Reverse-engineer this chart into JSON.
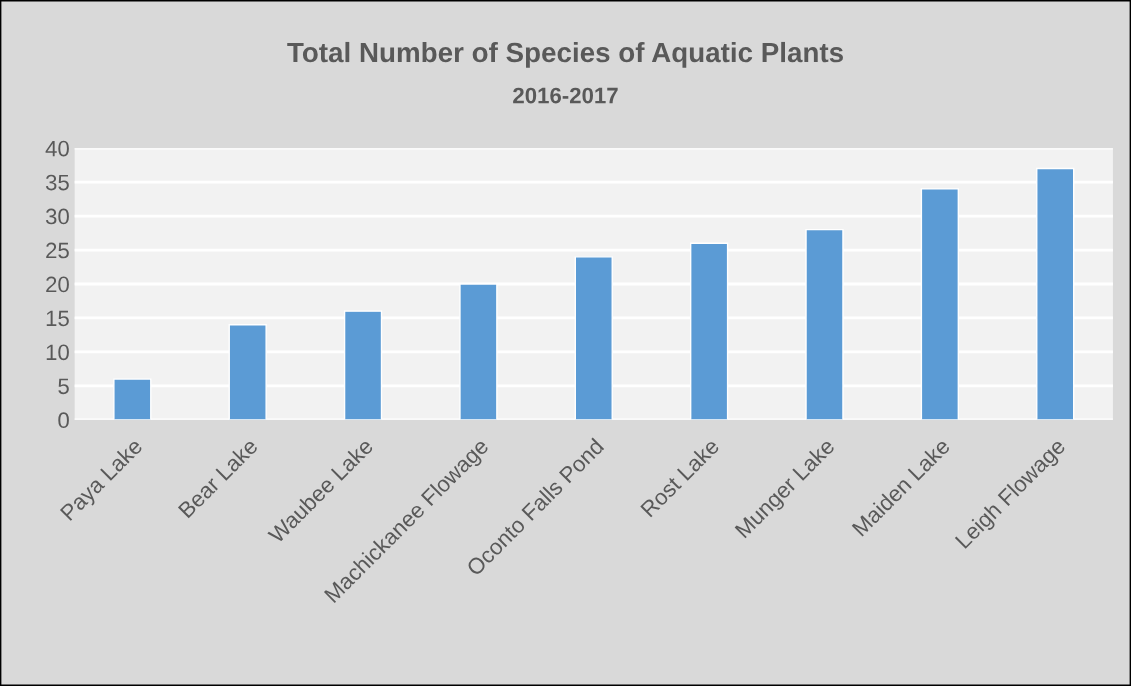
{
  "chart_data": {
    "type": "bar",
    "title": "Total Number of Species of Aquatic Plants",
    "subtitle": "2016-2017",
    "categories": [
      "Paya Lake",
      "Bear Lake",
      "Waubee Lake",
      "Machickanee Flowage",
      "Oconto Falls Pond",
      "Rost Lake",
      "Munger Lake",
      "Maiden Lake",
      "Leigh Flowage"
    ],
    "values": [
      6,
      14,
      16,
      20,
      24,
      26,
      28,
      34,
      37
    ],
    "color": "#5b9bd5",
    "ylim": [
      0,
      40
    ],
    "yticks": [
      0,
      5,
      10,
      15,
      20,
      25,
      30,
      35,
      40
    ],
    "grid": "y"
  }
}
